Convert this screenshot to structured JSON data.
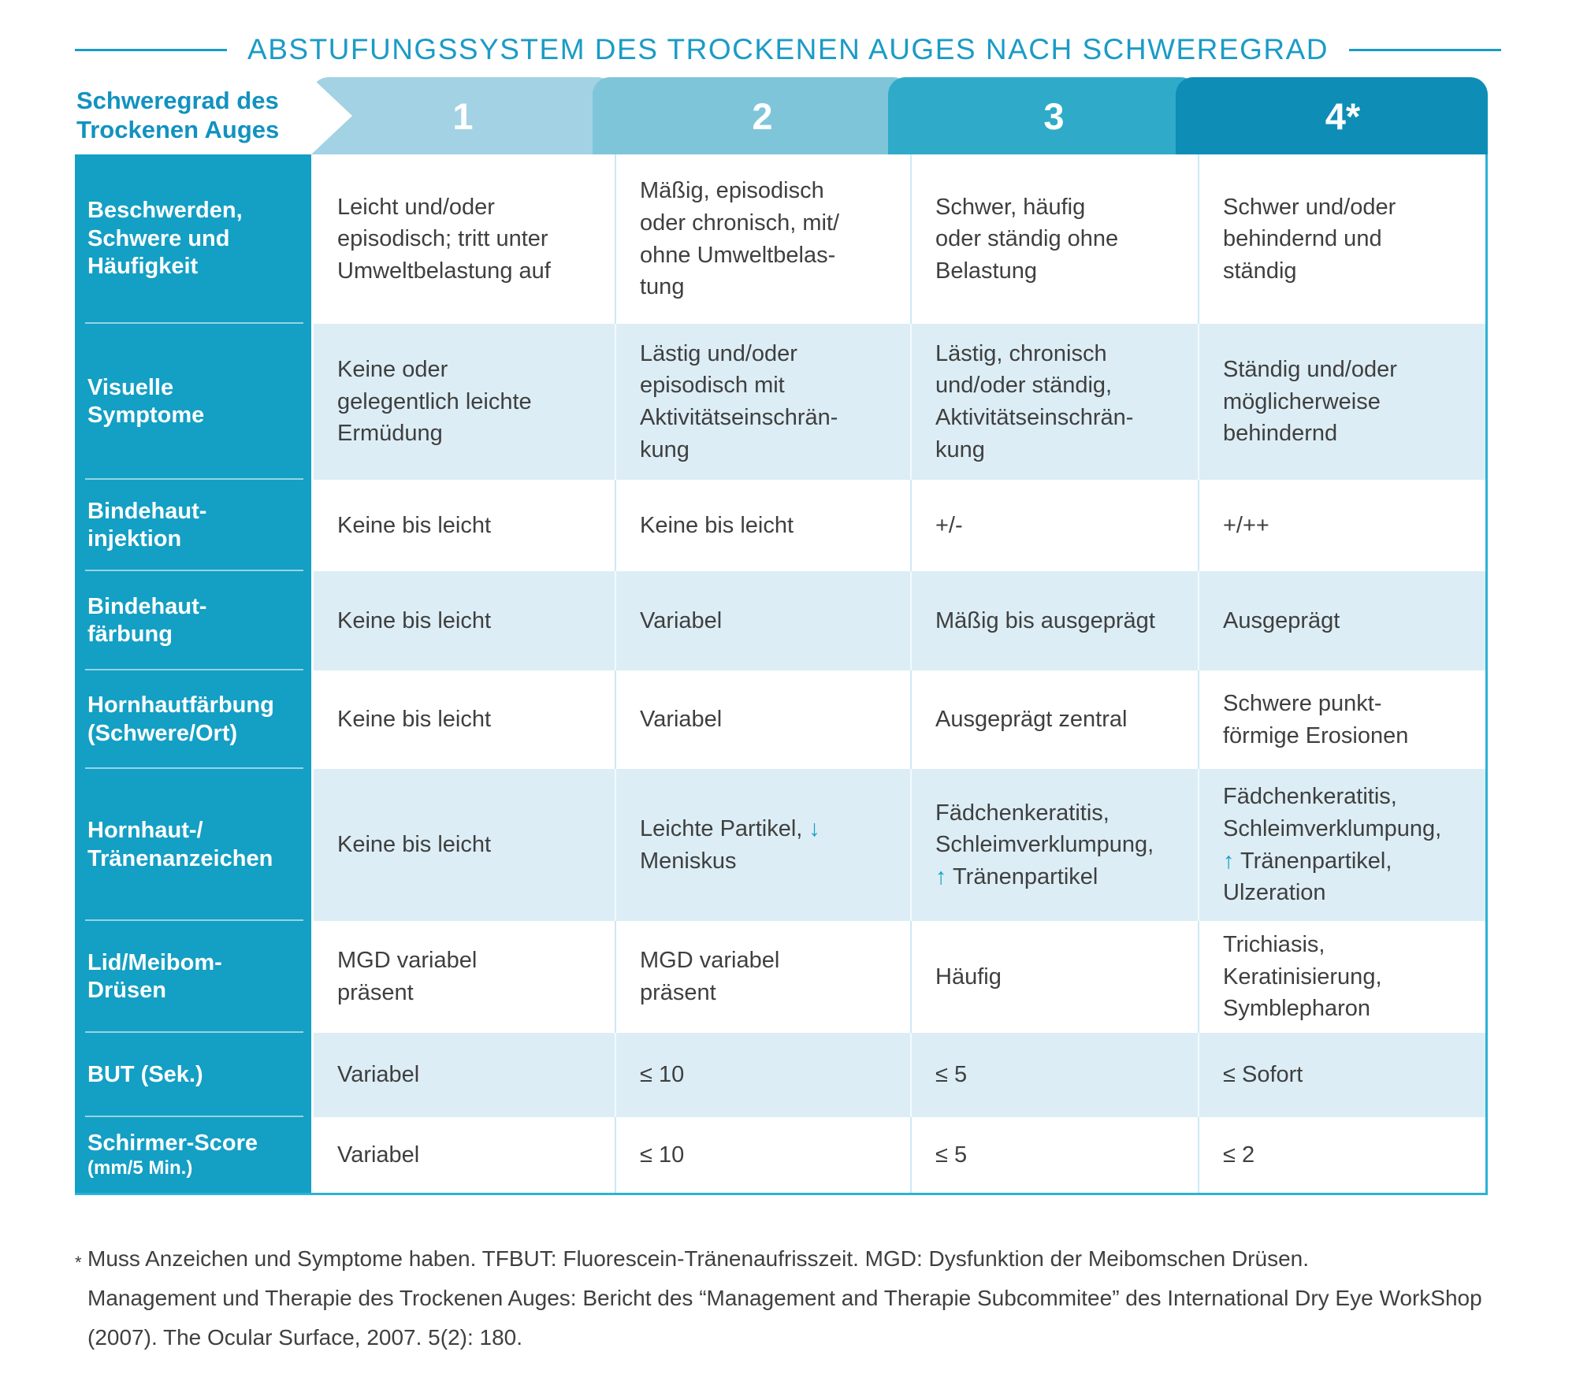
{
  "title": "ABSTUFUNGSSYSTEM DES TROCKENEN AUGES NACH SCHWEREGRAD",
  "header": {
    "label_line1": "Schweregrad des",
    "label_line2": "Trockenen Auges",
    "columns": [
      "1",
      "2",
      "3",
      "4*"
    ]
  },
  "rows": [
    {
      "label": "Beschwerden,\nSchwere und\nHäufigkeit",
      "sublabel": "",
      "cells": [
        "Leicht und/oder\nepisodisch; tritt unter\nUmweltbelastung auf",
        "Mäßig, episodisch\noder chronisch, mit/\nohne Umweltbelas-\ntung",
        "Schwer, häufig\noder ständig ohne\nBelastung",
        "Schwer und/oder\nbehindernd und\nständig"
      ]
    },
    {
      "label": "Visuelle\nSymptome",
      "sublabel": "",
      "cells": [
        "Keine oder\ngelegentlich leichte\nErmüdung",
        "Lästig und/oder\nepisodisch mit\nAktivitätseinschrän-\nkung",
        "Lästig, chronisch\nund/oder ständig,\nAktivitätseinschrän-\nkung",
        "Ständig und/oder\nmöglicherweise\nbehindernd"
      ]
    },
    {
      "label": "Bindehaut-\ninjektion",
      "sublabel": "",
      "cells": [
        "Keine bis leicht",
        "Keine bis leicht",
        "+/-",
        "+/++"
      ]
    },
    {
      "label": "Bindehaut-\nfärbung",
      "sublabel": "",
      "cells": [
        "Keine bis leicht",
        "Variabel",
        "Mäßig bis ausgeprägt",
        "Ausgeprägt"
      ]
    },
    {
      "label": "Hornhautfärbung\n(Schwere/Ort)",
      "sublabel": "",
      "cells": [
        "Keine bis leicht",
        "Variabel",
        "Ausgeprägt zentral",
        "Schwere punkt-\nförmige Erosionen"
      ]
    },
    {
      "label": "Hornhaut-/\nTränenanzeichen",
      "sublabel": "",
      "cells": [
        "Keine bis leicht",
        "Leichte Partikel, ↓\nMeniskus",
        "Fädchenkeratitis,\nSchleimverklumpung,\n↑ Tränenpartikel",
        "Fädchenkeratitis,\nSchleimverklumpung,\n↑ Tränenpartikel,\nUlzeration"
      ]
    },
    {
      "label": "Lid/Meibom-\nDrüsen",
      "sublabel": "",
      "cells": [
        "MGD variabel\npräsent",
        "MGD variabel\npräsent",
        "Häufig",
        "Trichiasis,\nKeratinisierung,\nSymblepharon"
      ]
    },
    {
      "label": "BUT (Sek.)",
      "sublabel": "",
      "cells": [
        "Variabel",
        "≤ 10",
        "≤ 5",
        "≤ Sofort"
      ]
    },
    {
      "label": "Schirmer-Score",
      "sublabel": "(mm/5 Min.)",
      "cells": [
        "Variabel",
        "≤ 10",
        "≤ 5",
        "≤ 2"
      ]
    }
  ],
  "footnote": {
    "marker": "*",
    "note1": "Muss Anzeichen und Symptome haben. TFBUT: Fluorescein-Tränenaufrisszeit. MGD: Dysfunktion der Meibomschen Drüsen.",
    "note2": "Management und Therapie des Trockenen Auges: Bericht des “Management and Therapie Subcommitee” des International Dry Eye WorkShop (2007). The Ocular Surface, 2007. 5(2): 180."
  },
  "colors": {
    "title": "#1b9bc6",
    "label_column": "#149fc4",
    "grade1": "#a2d2e3",
    "grade2": "#7ec5da",
    "grade3": "#2fabc9",
    "grade4": "#0e8db6",
    "row_light": "#dcedf5",
    "table_border": "#2cb2d6",
    "arrow": "#199fc4",
    "body_text": "#3f3f3f"
  }
}
